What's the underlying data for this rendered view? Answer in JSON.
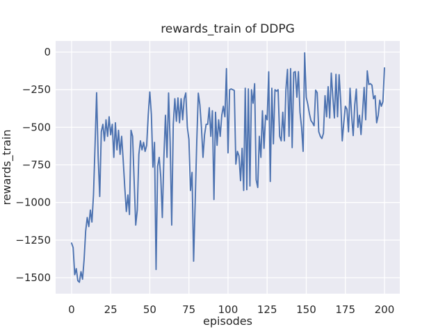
{
  "figure": {
    "background": "#ffffff",
    "plot_background": "#eaeaf2",
    "grid_color": "#ffffff",
    "text_color": "#262626"
  },
  "chart_data": {
    "type": "line",
    "title": "rewards_train of DDPG",
    "xlabel": "episodes",
    "ylabel": "rewards_train",
    "legend": "none",
    "grid": true,
    "line_color": "#4c72b0",
    "x_ticks": [
      0,
      25,
      50,
      75,
      100,
      125,
      150,
      175,
      200
    ],
    "y_ticks": [
      0,
      -250,
      -500,
      -750,
      -1000,
      -1250,
      -1500
    ],
    "xlim": [
      -10.2,
      209.8
    ],
    "ylim": [
      -1606,
      74
    ],
    "series": [
      {
        "name": "rewards_train",
        "x_start": 0,
        "x_step": 1,
        "values": [
          -1270,
          -1300,
          -1480,
          -1440,
          -1520,
          -1530,
          -1460,
          -1510,
          -1380,
          -1190,
          -1100,
          -1160,
          -1050,
          -1130,
          -950,
          -620,
          -270,
          -700,
          -960,
          -530,
          -480,
          -590,
          -450,
          -560,
          -430,
          -550,
          -480,
          -700,
          -470,
          -650,
          -520,
          -680,
          -560,
          -720,
          -900,
          -1060,
          -950,
          -1080,
          -520,
          -560,
          -860,
          -1150,
          -1050,
          -680,
          -590,
          -650,
          -600,
          -660,
          -620,
          -420,
          -265,
          -415,
          -765,
          -600,
          -1445,
          -760,
          -700,
          -830,
          -1100,
          -700,
          -420,
          -700,
          -272,
          -600,
          -1150,
          -480,
          -310,
          -460,
          -305,
          -470,
          -310,
          -450,
          -310,
          -272,
          -500,
          -580,
          -920,
          -800,
          -1390,
          -1000,
          -600,
          -273,
          -350,
          -500,
          -700,
          -550,
          -480,
          -480,
          -370,
          -560,
          -390,
          -980,
          -400,
          -620,
          -450,
          -560,
          -420,
          -360,
          -430,
          -110,
          -670,
          -250,
          -245,
          -250,
          -255,
          -745,
          -660,
          -690,
          -855,
          -640,
          -920,
          -240,
          -915,
          -245,
          -890,
          -250,
          -340,
          -210,
          -850,
          -900,
          -560,
          -700,
          -390,
          -640,
          -420,
          -450,
          -131,
          -860,
          -240,
          -610,
          -250,
          -260,
          -250,
          -560,
          -590,
          -400,
          -590,
          -250,
          -115,
          -560,
          -110,
          -635,
          -135,
          -130,
          -300,
          -130,
          -400,
          -500,
          -660,
          -5,
          -300,
          -348,
          -408,
          -455,
          -470,
          -490,
          -253,
          -270,
          -530,
          -560,
          -575,
          -540,
          -290,
          -430,
          -230,
          -438,
          -140,
          -300,
          -438,
          -148,
          -430,
          -150,
          -320,
          -590,
          -470,
          -360,
          -380,
          -530,
          -240,
          -420,
          -555,
          -350,
          -246,
          -500,
          -420,
          -548,
          -400,
          -235,
          -450,
          -125,
          -215,
          -210,
          -220,
          -310,
          -290,
          -470,
          -420,
          -320,
          -360,
          -330,
          -105
        ]
      }
    ]
  }
}
